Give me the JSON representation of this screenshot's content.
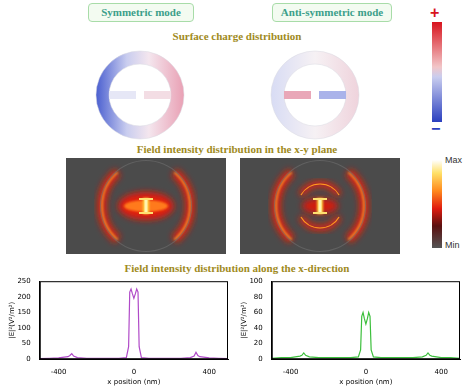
{
  "header": {
    "left": "Symmetric mode",
    "right": "Anti-symmetric mode"
  },
  "sections": [
    "Surface charge distribution",
    "Field intensity distribution in the x-y plane",
    "Field intensity distribution along the x-direction"
  ],
  "charge_colorbar": {
    "top": "+",
    "bottom": "−"
  },
  "field_colorbar": {
    "top": "Max",
    "bottom": "Min"
  },
  "chart_data": [
    {
      "type": "line",
      "color": "#b04ac8",
      "grid": false,
      "x_label": "x position (nm)",
      "y_label": "|E|²(V²/m²)",
      "x": [
        -500,
        -450,
        -400,
        -350,
        -340,
        -330,
        -320,
        -300,
        -250,
        -150,
        -80,
        -40,
        -28,
        -22,
        -15,
        -8,
        0,
        8,
        15,
        22,
        28,
        40,
        80,
        150,
        250,
        300,
        320,
        330,
        340,
        350,
        400,
        450,
        500
      ],
      "values": [
        2,
        3,
        4,
        8,
        12,
        18,
        10,
        5,
        3,
        3,
        3,
        5,
        40,
        215,
        225,
        210,
        195,
        210,
        225,
        215,
        40,
        5,
        3,
        3,
        3,
        5,
        10,
        22,
        12,
        8,
        4,
        3,
        2
      ],
      "xlim": [
        -500,
        500
      ],
      "xticks": [
        -400,
        0,
        400
      ],
      "ylim": [
        0,
        250
      ],
      "yticks": [
        0,
        50,
        100,
        150,
        200,
        250
      ]
    },
    {
      "type": "line",
      "color": "#3cbf3c",
      "grid": false,
      "x_label": "x position (nm)",
      "y_label": "|E|²(V²/m²)",
      "x": [
        -500,
        -450,
        -400,
        -350,
        -340,
        -330,
        -320,
        -300,
        -250,
        -150,
        -80,
        -40,
        -28,
        -22,
        -15,
        -8,
        0,
        8,
        15,
        22,
        28,
        40,
        80,
        150,
        250,
        300,
        320,
        330,
        340,
        350,
        400,
        450,
        500
      ],
      "values": [
        1,
        2,
        2,
        4,
        5,
        8,
        5,
        3,
        2,
        2,
        2,
        3,
        12,
        55,
        60,
        52,
        45,
        52,
        60,
        55,
        12,
        3,
        2,
        2,
        2,
        3,
        5,
        8,
        5,
        4,
        2,
        2,
        1
      ],
      "xlim": [
        -500,
        500
      ],
      "xticks": [
        -400,
        0,
        400
      ],
      "ylim": [
        0,
        100
      ],
      "yticks": [
        0,
        20,
        40,
        60,
        80,
        100
      ]
    }
  ]
}
